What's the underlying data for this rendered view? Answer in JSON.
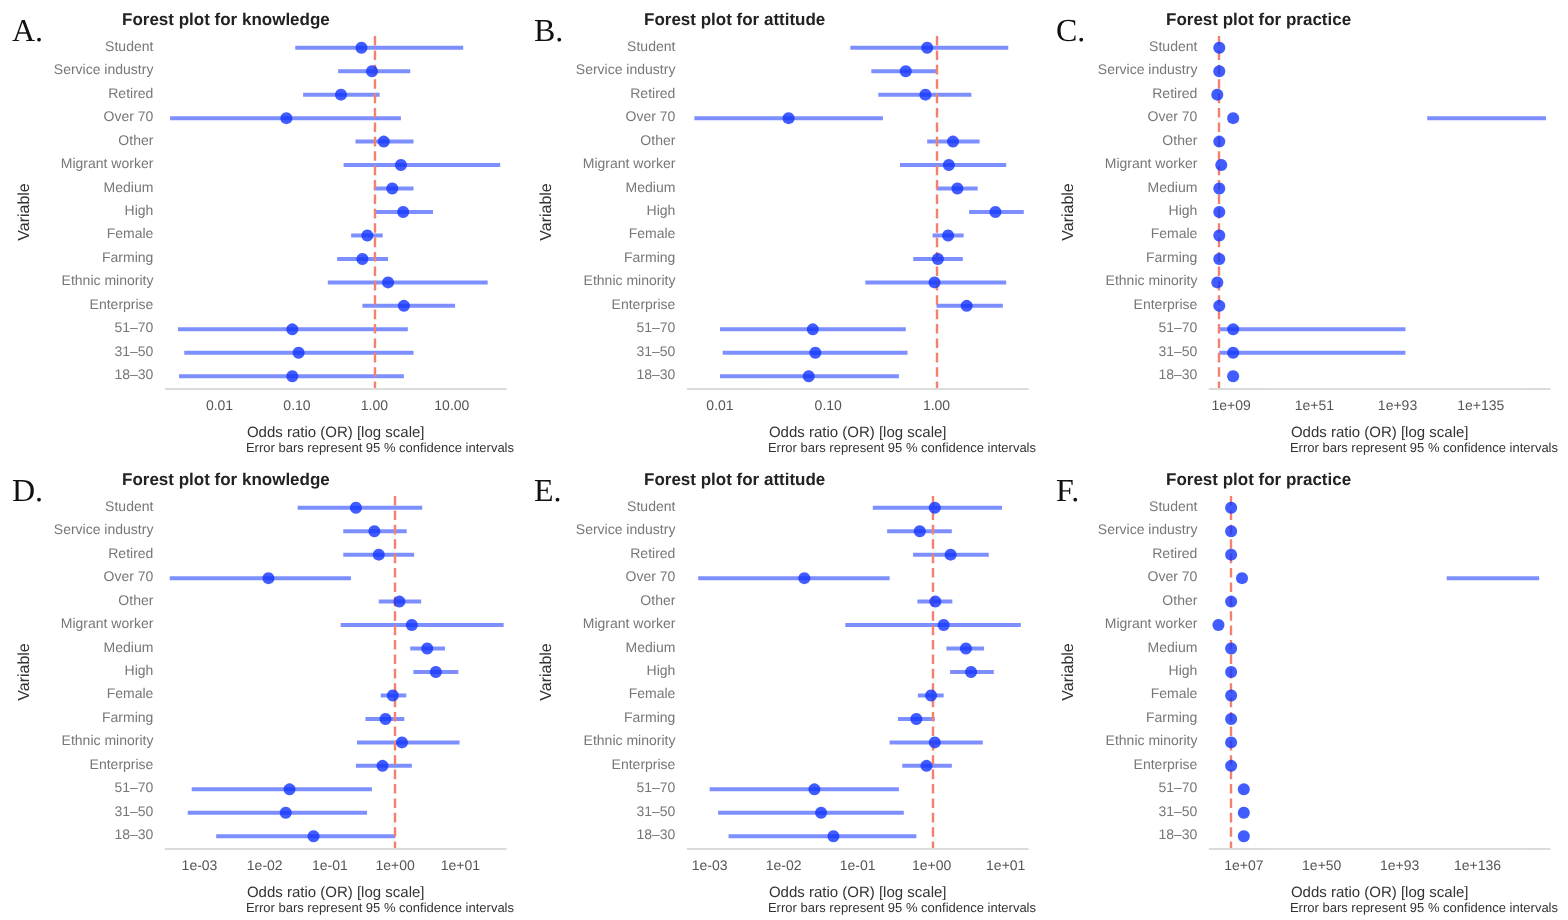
{
  "chart_data": [
    {
      "type": "scatter",
      "title": "Forest plot for knowledge",
      "xlabel": "Odds ratio (OR) [log scale]",
      "ylabel": "Variable",
      "annotations": [
        "A.",
        "Error bars represent 95 % confidence intervals"
      ],
      "orientation": "horizontal",
      "log": "x",
      "marker": "circle",
      "legend": false,
      "grid": false,
      "categories": [
        "Student",
        "Service industry",
        "Retired",
        "Over 70",
        "Other",
        "Migrant worker",
        "Medium",
        "High",
        "Female",
        "Farming",
        "Ethnic minority",
        "Enterprise",
        "51–70",
        "31–50",
        "18–30"
      ],
      "series": [
        {
          "color": "#1233ff",
          "values": [
            0.68,
            0.93,
            0.37,
            0.073,
            1.32,
            2.2,
            1.7,
            2.35,
            0.81,
            0.7,
            1.5,
            2.4,
            0.087,
            0.105,
            0.087
          ],
          "errors": [
            [
              0.095,
              14
            ],
            [
              0.34,
              2.9
            ],
            [
              0.12,
              1.17
            ],
            [
              0.0023,
              2.2
            ],
            [
              0.57,
              3.2
            ],
            [
              0.4,
              42
            ],
            [
              0.98,
              3.2
            ],
            [
              1.0,
              5.7
            ],
            [
              0.5,
              1.28
            ],
            [
              0.33,
              1.5
            ],
            [
              0.25,
              29
            ],
            [
              0.7,
              11
            ],
            [
              0.0029,
              2.7
            ],
            [
              0.0035,
              3.2
            ],
            [
              0.003,
              2.4
            ]
          ]
        }
      ],
      "xlim": [
        0.002,
        50
      ],
      "xticks": [
        0.01,
        {
          "value": 0.1,
          "label": "0.10"
        },
        {
          "value": 1,
          "label": "1.00"
        },
        {
          "value": 10,
          "label": "10.00"
        }
      ],
      "ref_lines": [
        {
          "axis": "x",
          "value": 1,
          "color": "#f4806e",
          "line_style": "dashed"
        }
      ]
    },
    {
      "type": "scatter",
      "title": "Forest plot for attitude",
      "xlabel": "Odds ratio (OR) [log scale]",
      "ylabel": "Variable",
      "annotations": [
        "B.",
        "Error bars represent 95 % confidence intervals"
      ],
      "orientation": "horizontal",
      "log": "x",
      "marker": "circle",
      "legend": false,
      "grid": false,
      "categories": [
        "Student",
        "Service industry",
        "Retired",
        "Over 70",
        "Other",
        "Migrant worker",
        "Medium",
        "High",
        "Female",
        "Farming",
        "Ethnic minority",
        "Enterprise",
        "51–70",
        "31–50",
        "18–30"
      ],
      "series": [
        {
          "color": "#1233ff",
          "values": [
            0.82,
            0.52,
            0.79,
            0.043,
            1.42,
            1.3,
            1.56,
            3.5,
            1.28,
            1.03,
            0.96,
            1.9,
            0.072,
            0.076,
            0.066
          ],
          "errors": [
            [
              0.16,
              4.6
            ],
            [
              0.25,
              1.0
            ],
            [
              0.29,
              2.1
            ],
            [
              0.0058,
              0.32
            ],
            [
              0.82,
              2.5
            ],
            [
              0.46,
              4.4
            ],
            [
              1.0,
              2.4
            ],
            [
              2.0,
              6.4
            ],
            [
              0.92,
              1.78
            ],
            [
              0.61,
              1.75
            ],
            [
              0.22,
              4.4
            ],
            [
              1.0,
              4.1
            ],
            [
              0.01,
              0.52
            ],
            [
              0.0106,
              0.54
            ],
            [
              0.01,
              0.45
            ]
          ]
        }
      ],
      "xlim": [
        0.005,
        7
      ],
      "xticks": [
        0.01,
        {
          "value": 0.1,
          "label": "0.10"
        },
        {
          "value": 1,
          "label": "1.00"
        }
      ],
      "ref_lines": [
        {
          "axis": "x",
          "value": 1,
          "color": "#f4806e",
          "line_style": "dashed"
        }
      ]
    },
    {
      "type": "scatter",
      "title": "Forest plot for practice",
      "xlabel": "Odds ratio (OR) [log scale]",
      "ylabel": "Variable",
      "annotations": [
        "C.",
        "Error bars represent 95 % confidence intervals"
      ],
      "orientation": "horizontal",
      "log": "x",
      "marker": "circle",
      "legend": false,
      "grid": false,
      "categories": [
        "Student",
        "Service industry",
        "Retired",
        "Over 70",
        "Other",
        "Migrant worker",
        "Medium",
        "High",
        "Female",
        "Farming",
        "Ethnic minority",
        "Enterprise",
        "51–70",
        "31–50",
        "18–30"
      ],
      "series": [
        {
          "color": "#1233ff",
          "values": [
            1000.0,
            1000.0,
            100.0,
            10000000000.0,
            1000.0,
            10000.0,
            1000.0,
            1000.0,
            1000.0,
            1000.0,
            100.0,
            1000.0,
            10000000000.0,
            10000000000.0,
            10000000000.0
          ],
          "errors": [
            null,
            null,
            null,
            [
              1e+108,
              1e+168
            ],
            null,
            null,
            null,
            null,
            null,
            null,
            null,
            null,
            [
              1000.0,
              1e+97
            ],
            [
              1000.0,
              1e+97
            ],
            null
          ]
        }
      ],
      "xlim": [
        0.01,
        1e+170
      ],
      "xticks": [
        {
          "value": 1000000000.0,
          "label": "1e+09"
        },
        {
          "value": 1e+51,
          "label": "1e+51"
        },
        {
          "value": 1e+93,
          "label": "1e+93"
        },
        {
          "value": 1e+135,
          "label": "1e+135"
        }
      ],
      "ref_lines": [
        {
          "axis": "x",
          "value": 1000,
          "color": "#f4806e",
          "line_style": "dashed"
        }
      ]
    },
    {
      "type": "scatter",
      "title": "Forest plot for knowledge",
      "xlabel": "Odds ratio (OR) [log scale]",
      "ylabel": "Variable",
      "annotations": [
        "D.",
        "Error bars represent 95 % confidence intervals"
      ],
      "orientation": "horizontal",
      "log": "x",
      "marker": "circle",
      "legend": false,
      "grid": false,
      "categories": [
        "Student",
        "Service industry",
        "Retired",
        "Over 70",
        "Other",
        "Migrant worker",
        "Medium",
        "High",
        "Female",
        "Farming",
        "Ethnic minority",
        "Enterprise",
        "51–70",
        "31–50",
        "18–30"
      ],
      "series": [
        {
          "color": "#1233ff",
          "values": [
            0.25,
            0.48,
            0.56,
            0.0114,
            1.16,
            1.8,
            3.1,
            4.2,
            0.92,
            0.71,
            1.27,
            0.64,
            0.024,
            0.021,
            0.056
          ],
          "errors": [
            [
              0.032,
              2.6
            ],
            [
              0.16,
              1.5
            ],
            [
              0.16,
              1.95
            ],
            [
              0.00035,
              0.21
            ],
            [
              0.56,
              2.5
            ],
            [
              0.146,
              46
            ],
            [
              1.7,
              5.8
            ],
            [
              1.9,
              9.3
            ],
            [
              0.6,
              1.48
            ],
            [
              0.35,
              1.38
            ],
            [
              0.26,
              9.7
            ],
            [
              0.25,
              1.8
            ],
            [
              0.00076,
              0.44
            ],
            [
              0.00066,
              0.37
            ],
            [
              0.0018,
              1.0
            ]
          ]
        }
      ],
      "xlim": [
        0.0003,
        50
      ],
      "xticks": [
        {
          "value": 0.001,
          "label": "1e-03"
        },
        {
          "value": 0.01,
          "label": "1e-02"
        },
        {
          "value": 0.1,
          "label": "1e-01"
        },
        {
          "value": 1,
          "label": "1e+00"
        },
        {
          "value": 10,
          "label": "1e+01"
        }
      ],
      "ref_lines": [
        {
          "axis": "x",
          "value": 1,
          "color": "#f4806e",
          "line_style": "dashed"
        }
      ]
    },
    {
      "type": "scatter",
      "title": "Forest plot for attitude",
      "xlabel": "Odds ratio (OR) [log scale]",
      "ylabel": "Variable",
      "annotations": [
        "E.",
        "Error bars represent 95 % confidence intervals"
      ],
      "orientation": "horizontal",
      "log": "x",
      "marker": "circle",
      "legend": false,
      "grid": false,
      "categories": [
        "Student",
        "Service industry",
        "Retired",
        "Over 70",
        "Other",
        "Migrant worker",
        "Medium",
        "High",
        "Female",
        "Farming",
        "Ethnic minority",
        "Enterprise",
        "51–70",
        "31–50",
        "18–30"
      ],
      "series": [
        {
          "color": "#1233ff",
          "values": [
            1.1,
            0.69,
            1.8,
            0.019,
            1.12,
            1.45,
            2.9,
            3.4,
            0.98,
            0.62,
            1.1,
            0.85,
            0.026,
            0.032,
            0.047
          ],
          "errors": [
            [
              0.16,
              8.9
            ],
            [
              0.25,
              1.87
            ],
            [
              0.56,
              5.9
            ],
            [
              0.0007,
              0.27
            ],
            [
              0.64,
              1.9
            ],
            [
              0.068,
              16
            ],
            [
              1.58,
              5.1
            ],
            [
              1.77,
              6.9
            ],
            [
              0.65,
              1.45
            ],
            [
              0.35,
              1.1
            ],
            [
              0.27,
              4.9
            ],
            [
              0.4,
              1.87
            ],
            [
              0.001,
              0.36
            ],
            [
              0.0013,
              0.42
            ],
            [
              0.0018,
              0.62
            ]
          ]
        }
      ],
      "xlim": [
        0.0005,
        20
      ],
      "xticks": [
        {
          "value": 0.001,
          "label": "1e-03"
        },
        {
          "value": 0.01,
          "label": "1e-02"
        },
        {
          "value": 0.1,
          "label": "1e-01"
        },
        {
          "value": 1,
          "label": "1e+00"
        },
        {
          "value": 10,
          "label": "1e+01"
        }
      ],
      "ref_lines": [
        {
          "axis": "x",
          "value": 1,
          "color": "#f4806e",
          "line_style": "dashed"
        }
      ]
    },
    {
      "type": "scatter",
      "title": "Forest plot for practice",
      "xlabel": "Odds ratio (OR) [log scale]",
      "ylabel": "Variable",
      "annotations": [
        "F.",
        "Error bars represent 95 % confidence intervals"
      ],
      "orientation": "horizontal",
      "log": "x",
      "marker": "circle",
      "legend": false,
      "grid": false,
      "categories": [
        "Student",
        "Service industry",
        "Retired",
        "Over 70",
        "Other",
        "Migrant worker",
        "Medium",
        "High",
        "Female",
        "Farming",
        "Ethnic minority",
        "Enterprise",
        "51–70",
        "31–50",
        "18–30"
      ],
      "series": [
        {
          "color": "#1233ff",
          "values": [
            1,
            1,
            1,
            1000000.0,
            1,
            1e-07,
            1,
            1,
            1,
            1,
            1,
            1,
            10000000.0,
            10000000.0,
            10000000.0
          ],
          "errors": [
            null,
            null,
            null,
            [
              1e+119,
              1e+170
            ],
            null,
            null,
            null,
            null,
            null,
            null,
            null,
            null,
            null,
            null,
            null
          ]
        }
      ],
      "xlim": [
        1e-12,
        1e+176
      ],
      "xticks": [
        {
          "value": 10000000.0,
          "label": "1e+07"
        },
        {
          "value": 1e+50,
          "label": "1e+50"
        },
        {
          "value": 1e+93,
          "label": "1e+93"
        },
        {
          "value": 1e+136,
          "label": "1e+136"
        }
      ],
      "ref_lines": [
        {
          "axis": "x",
          "value": 1,
          "color": "#f4806e",
          "line_style": "dashed"
        }
      ]
    }
  ]
}
